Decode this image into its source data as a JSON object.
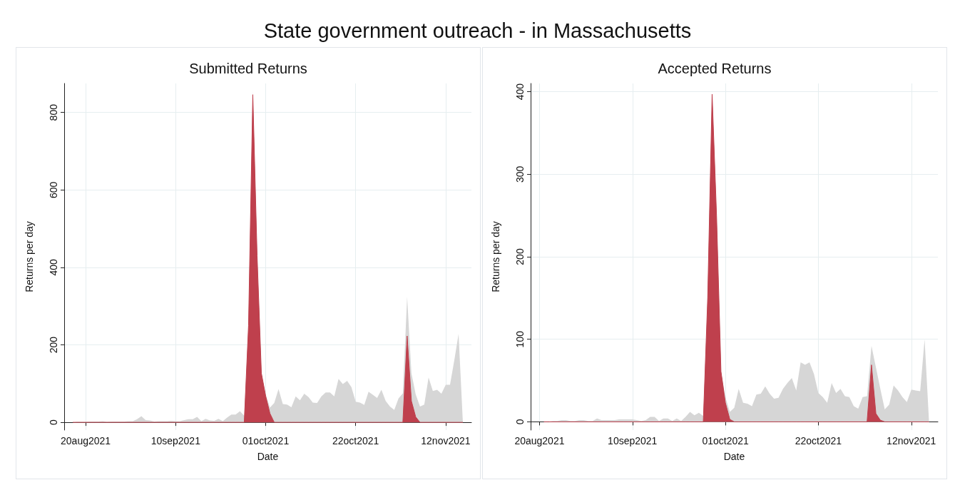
{
  "chart_data": [
    {
      "type": "area",
      "title": "State government outreach - in Massachusetts",
      "subtitle": "Submitted Returns",
      "xlabel": "Date",
      "ylabel": "Returns per day",
      "x": [
        "2021-08-17",
        "2021-08-18",
        "2021-08-19",
        "2021-08-20",
        "2021-08-21",
        "2021-08-22",
        "2021-08-23",
        "2021-08-24",
        "2021-08-25",
        "2021-08-26",
        "2021-08-27",
        "2021-08-28",
        "2021-08-29",
        "2021-08-30",
        "2021-08-31",
        "2021-09-01",
        "2021-09-02",
        "2021-09-03",
        "2021-09-04",
        "2021-09-05",
        "2021-09-06",
        "2021-09-07",
        "2021-09-08",
        "2021-09-09",
        "2021-09-10",
        "2021-09-11",
        "2021-09-12",
        "2021-09-13",
        "2021-09-14",
        "2021-09-15",
        "2021-09-16",
        "2021-09-17",
        "2021-09-18",
        "2021-09-19",
        "2021-09-20",
        "2021-09-21",
        "2021-09-22",
        "2021-09-23",
        "2021-09-24",
        "2021-09-25",
        "2021-09-26",
        "2021-09-27",
        "2021-09-28",
        "2021-09-29",
        "2021-09-30",
        "2021-10-01",
        "2021-10-02",
        "2021-10-03",
        "2021-10-04",
        "2021-10-05",
        "2021-10-06",
        "2021-10-07",
        "2021-10-08",
        "2021-10-09",
        "2021-10-10",
        "2021-10-11",
        "2021-10-12",
        "2021-10-13",
        "2021-10-14",
        "2021-10-15",
        "2021-10-16",
        "2021-10-17",
        "2021-10-18",
        "2021-10-19",
        "2021-10-20",
        "2021-10-21",
        "2021-10-22",
        "2021-10-23",
        "2021-10-24",
        "2021-10-25",
        "2021-10-26",
        "2021-10-27",
        "2021-10-28",
        "2021-10-29",
        "2021-10-30",
        "2021-10-31",
        "2021-11-01",
        "2021-11-02",
        "2021-11-03",
        "2021-11-04",
        "2021-11-05",
        "2021-11-06",
        "2021-11-07",
        "2021-11-08",
        "2021-11-09",
        "2021-11-10",
        "2021-11-11",
        "2021-11-12",
        "2021-11-13",
        "2021-11-14",
        "2021-11-15",
        "2021-11-16"
      ],
      "series": [
        {
          "color": "#d6d6d6",
          "values": [
            0,
            1,
            1,
            1,
            2,
            2,
            2,
            3,
            1,
            2,
            2,
            2,
            2,
            3,
            3,
            8,
            16,
            6,
            5,
            2,
            3,
            3,
            3,
            4,
            3,
            3,
            6,
            8,
            8,
            14,
            3,
            9,
            5,
            4,
            9,
            3,
            12,
            20,
            20,
            29,
            17,
            250,
            856,
            440,
            127,
            72,
            38,
            50,
            86,
            47,
            46,
            39,
            67,
            57,
            74,
            65,
            51,
            50,
            67,
            77,
            77,
            67,
            112,
            99,
            107,
            91,
            53,
            51,
            45,
            79,
            71,
            63,
            84,
            55,
            41,
            32,
            62,
            75,
            324,
            127,
            72,
            41,
            46,
            116,
            81,
            84,
            74,
            97,
            97,
            160,
            228,
            0
          ]
        },
        {
          "color": "#bf404d",
          "values": [
            0,
            0,
            0,
            0,
            0,
            0,
            0,
            0,
            0,
            0,
            0,
            0,
            0,
            0,
            0,
            0,
            0,
            0,
            0,
            0,
            0,
            0,
            0,
            0,
            0,
            0,
            0,
            0,
            0,
            0,
            0,
            0,
            0,
            0,
            0,
            0,
            0,
            0,
            0,
            0,
            0,
            250,
            846,
            430,
            127,
            68,
            23,
            0,
            0,
            0,
            0,
            0,
            0,
            0,
            0,
            0,
            0,
            0,
            0,
            0,
            0,
            0,
            0,
            0,
            0,
            0,
            0,
            0,
            0,
            0,
            0,
            0,
            0,
            0,
            0,
            0,
            0,
            0,
            223,
            55,
            14,
            0,
            0,
            0,
            0,
            0,
            0,
            0,
            0,
            0,
            0,
            0
          ]
        }
      ],
      "xlim": [
        "2021-08-15",
        "2021-11-18"
      ],
      "xticks": [
        {
          "value": "2021-08-20",
          "label": "20aug2021"
        },
        {
          "value": "2021-09-10",
          "label": "10sep2021"
        },
        {
          "value": "2021-10-01",
          "label": "01oct2021"
        },
        {
          "value": "2021-10-22",
          "label": "22oct2021"
        },
        {
          "value": "2021-11-12",
          "label": "12nov2021"
        }
      ],
      "ylim": [
        -20,
        875
      ],
      "yticks": [
        0,
        200,
        400,
        600,
        800
      ],
      "grid": true
    },
    {
      "type": "area",
      "subtitle": "Accepted Returns",
      "xlabel": "Date",
      "ylabel": "Returns per day",
      "x": [
        "2021-08-21",
        "2021-08-22",
        "2021-08-23",
        "2021-08-24",
        "2021-08-25",
        "2021-08-26",
        "2021-08-27",
        "2021-08-28",
        "2021-08-29",
        "2021-08-30",
        "2021-08-31",
        "2021-09-01",
        "2021-09-02",
        "2021-09-03",
        "2021-09-04",
        "2021-09-05",
        "2021-09-06",
        "2021-09-07",
        "2021-09-08",
        "2021-09-09",
        "2021-09-10",
        "2021-09-11",
        "2021-09-12",
        "2021-09-13",
        "2021-09-14",
        "2021-09-15",
        "2021-09-16",
        "2021-09-17",
        "2021-09-18",
        "2021-09-19",
        "2021-09-20",
        "2021-09-21",
        "2021-09-22",
        "2021-09-23",
        "2021-09-24",
        "2021-09-25",
        "2021-09-26",
        "2021-09-27",
        "2021-09-28",
        "2021-09-29",
        "2021-09-30",
        "2021-10-01",
        "2021-10-02",
        "2021-10-03",
        "2021-10-04",
        "2021-10-05",
        "2021-10-06",
        "2021-10-07",
        "2021-10-08",
        "2021-10-09",
        "2021-10-10",
        "2021-10-11",
        "2021-10-12",
        "2021-10-13",
        "2021-10-14",
        "2021-10-15",
        "2021-10-16",
        "2021-10-17",
        "2021-10-18",
        "2021-10-19",
        "2021-10-20",
        "2021-10-21",
        "2021-10-22",
        "2021-10-23",
        "2021-10-24",
        "2021-10-25",
        "2021-10-26",
        "2021-10-27",
        "2021-10-28",
        "2021-10-29",
        "2021-10-30",
        "2021-10-31",
        "2021-11-01",
        "2021-11-02",
        "2021-11-03",
        "2021-11-04",
        "2021-11-05",
        "2021-11-06",
        "2021-11-07",
        "2021-11-08",
        "2021-11-09",
        "2021-11-10",
        "2021-11-11",
        "2021-11-12",
        "2021-11-13",
        "2021-11-14",
        "2021-11-15",
        "2021-11-16"
      ],
      "series": [
        {
          "color": "#d6d6d6",
          "values": [
            0,
            0,
            1,
            1,
            2,
            2,
            1,
            1,
            2,
            2,
            1,
            1,
            4,
            2,
            2,
            2,
            2,
            3,
            3,
            3,
            3,
            2,
            1,
            2,
            6,
            6,
            1,
            4,
            4,
            1,
            4,
            1,
            6,
            12,
            8,
            11,
            7,
            150,
            399,
            252,
            61,
            30,
            12,
            17,
            40,
            23,
            22,
            19,
            33,
            34,
            43,
            34,
            28,
            29,
            40,
            47,
            53,
            38,
            72,
            69,
            72,
            58,
            35,
            30,
            23,
            47,
            35,
            40,
            31,
            30,
            19,
            16,
            30,
            31,
            92,
            66,
            40,
            15,
            21,
            44,
            38,
            30,
            24,
            39,
            38,
            37,
            100,
            0
          ]
        },
        {
          "color": "#bf404d",
          "values": [
            0,
            0,
            0,
            0,
            0,
            0,
            0,
            0,
            0,
            0,
            0,
            0,
            0,
            0,
            0,
            0,
            0,
            0,
            0,
            0,
            0,
            0,
            0,
            0,
            0,
            0,
            0,
            0,
            0,
            0,
            0,
            0,
            0,
            0,
            0,
            0,
            0,
            150,
            397,
            250,
            61,
            23,
            3,
            0,
            0,
            0,
            0,
            0,
            0,
            0,
            0,
            0,
            0,
            0,
            0,
            0,
            0,
            0,
            0,
            0,
            0,
            0,
            0,
            0,
            0,
            0,
            0,
            0,
            0,
            0,
            0,
            0,
            0,
            0,
            69,
            10,
            2,
            0,
            0,
            0,
            0,
            0,
            0,
            0,
            0,
            0,
            0,
            0
          ]
        }
      ],
      "xlim": [
        "2021-08-18",
        "2021-11-18"
      ],
      "xticks": [
        {
          "value": "2021-08-20",
          "label": "20aug2021"
        },
        {
          "value": "2021-09-10",
          "label": "10sep2021"
        },
        {
          "value": "2021-10-01",
          "label": "01oct2021"
        },
        {
          "value": "2021-10-22",
          "label": "22oct2021"
        },
        {
          "value": "2021-11-12",
          "label": "12nov2021"
        }
      ],
      "ylim": [
        -10,
        410
      ],
      "yticks": [
        0,
        100,
        200,
        300,
        400
      ],
      "grid": true
    }
  ]
}
